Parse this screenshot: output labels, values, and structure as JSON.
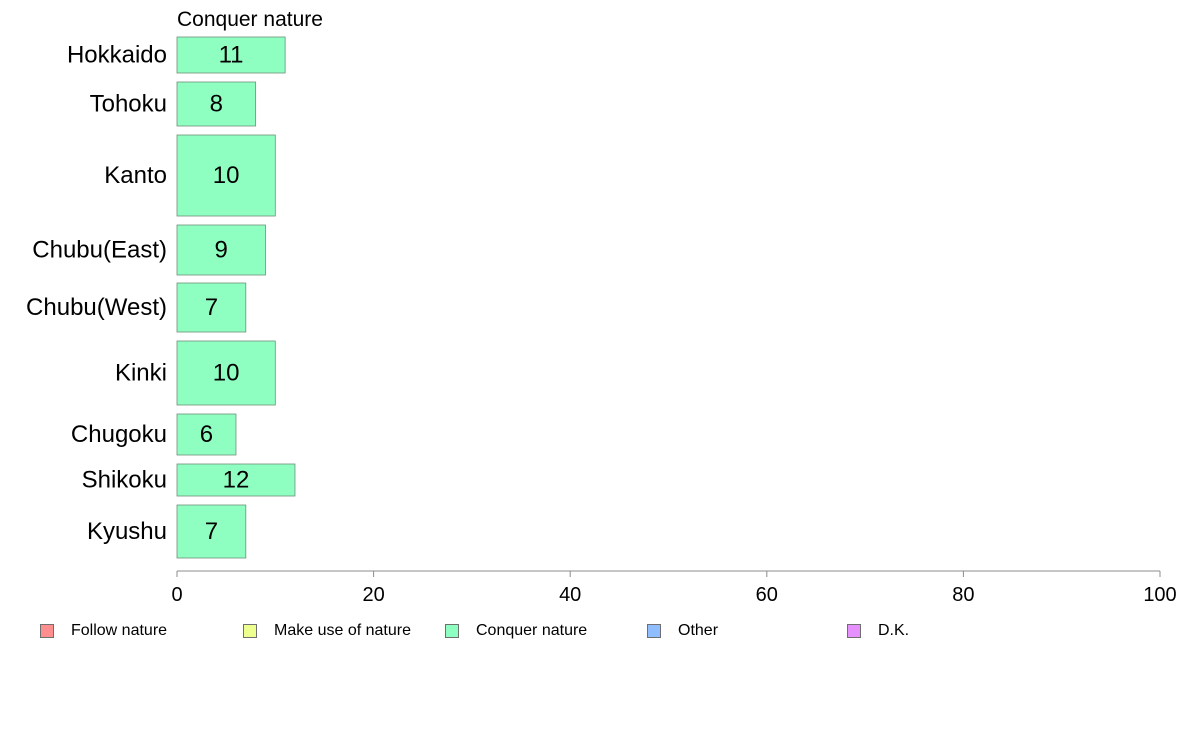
{
  "chart_data": {
    "type": "bar",
    "orientation": "horizontal",
    "title": "Conquer nature",
    "categories": [
      "Hokkaido",
      "Tohoku",
      "Kanto",
      "Chubu(East)",
      "Chubu(West)",
      "Kinki",
      "Chugoku",
      "Shikoku",
      "Kyushu"
    ],
    "values": [
      11,
      8,
      10,
      9,
      7,
      10,
      6,
      12,
      7
    ],
    "data_labels": [
      "11",
      "8",
      "10",
      "9",
      "7",
      "10",
      "6",
      "12",
      "7"
    ],
    "xlim": [
      0,
      100
    ],
    "xticks": [
      0,
      20,
      40,
      60,
      80,
      100
    ],
    "xlabel": "",
    "ylabel": "",
    "grid": false,
    "bar_color": "#8fffc1",
    "legend_position": "bottom",
    "legend": [
      {
        "label": "Follow nature",
        "color": "#ff8f8f"
      },
      {
        "label": "Make use of nature",
        "color": "#edff8f"
      },
      {
        "label": "Conquer nature",
        "color": "#8fffc1"
      },
      {
        "label": "Other",
        "color": "#8fbdff"
      },
      {
        "label": "D.K.",
        "color": "#e68fff"
      }
    ]
  }
}
